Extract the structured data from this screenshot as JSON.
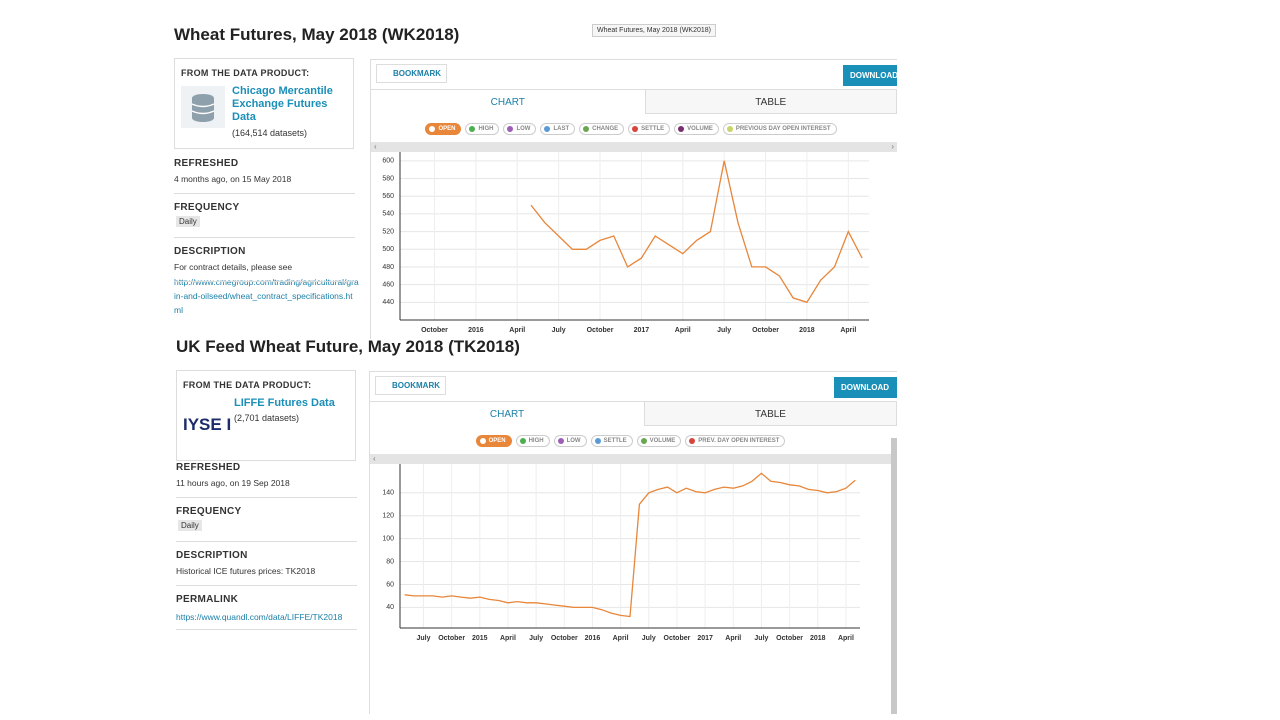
{
  "tooltip": "Wheat Futures, May 2018 (WK2018)",
  "panels": [
    {
      "title": "Wheat Futures, May 2018 (WK2018)",
      "product_heading": "FROM THE DATA PRODUCT:",
      "product_name": "Chicago Mercantile Exchange Futures Data",
      "product_count": "(164,514 datasets)",
      "sections": [
        {
          "heading": "REFRESHED",
          "text": "4 months ago, on 15 May 2018"
        },
        {
          "heading": "FREQUENCY",
          "badge": "Daily"
        },
        {
          "heading": "DESCRIPTION",
          "text": "For contract details, please see",
          "link": "http://www.cmegroup.com/trading/agricultural/grain-and-oilseed/wheat_contract_specifications.html"
        }
      ],
      "bookmark": "BOOKMARK",
      "download": "DOWNLOAD",
      "tabs": [
        "CHART",
        "TABLE"
      ],
      "toggles": [
        {
          "label": "HIGH",
          "color": "#4caf50"
        },
        {
          "label": "LOW",
          "color": "#9c5fb5"
        },
        {
          "label": "LAST",
          "color": "#5b9bd5"
        },
        {
          "label": "CHANGE",
          "color": "#6aa84f"
        },
        {
          "label": "SETTLE",
          "color": "#d9443c"
        },
        {
          "label": "VOLUME",
          "color": "#7b2d6e"
        },
        {
          "label": "PREVIOUS DAY OPEN INTEREST",
          "color": "#c9d46a"
        }
      ]
    },
    {
      "title": "UK Feed Wheat Future, May 2018 (TK2018)",
      "product_heading": "FROM THE DATA PRODUCT:",
      "logo": "IYSE I",
      "product_name": "LIFFE Futures Data",
      "product_count": "(2,701 datasets)",
      "sections": [
        {
          "heading": "REFRESHED",
          "text": "11 hours ago, on 19 Sep 2018"
        },
        {
          "heading": "FREQUENCY",
          "badge": "Daily"
        },
        {
          "heading": "DESCRIPTION",
          "text": "Historical ICE futures prices: TK2018"
        },
        {
          "heading": "PERMALINK",
          "link": "https://www.quandl.com/data/LIFFE/TK2018"
        }
      ],
      "bookmark": "BOOKMARK",
      "download": "DOWNLOAD",
      "tabs": [
        "CHART",
        "TABLE"
      ],
      "toggles": [
        {
          "label": "HIGH",
          "color": "#4caf50"
        },
        {
          "label": "LOW",
          "color": "#9c5fb5"
        },
        {
          "label": "SETTLE",
          "color": "#5b9bd5"
        },
        {
          "label": "VOLUME",
          "color": "#6aa84f"
        },
        {
          "label": "PREV. DAY OPEN INTEREST",
          "color": "#d9443c"
        }
      ]
    }
  ],
  "chart_data": [
    {
      "type": "line",
      "categories": [
        null,
        null,
        "October",
        null,
        null,
        "2016",
        null,
        null,
        "April",
        null,
        null,
        "July",
        null,
        null,
        "October",
        null,
        null,
        "2017",
        null,
        null,
        "April",
        null,
        null,
        "July",
        null,
        null,
        "October",
        null,
        null,
        "2018",
        null,
        null,
        "April",
        null
      ],
      "series": [
        {
          "name": "OPEN",
          "color": "#e8863a",
          "values": [
            null,
            null,
            null,
            null,
            null,
            null,
            null,
            null,
            null,
            550,
            530,
            515,
            500,
            500,
            510,
            515,
            480,
            490,
            515,
            505,
            495,
            510,
            520,
            600,
            530,
            480,
            480,
            470,
            445,
            440,
            465,
            480,
            520,
            490
          ]
        }
      ],
      "ylim": [
        420,
        610
      ],
      "yticks": [
        440,
        460,
        480,
        500,
        520,
        540,
        560,
        580,
        600
      ],
      "grid": true
    },
    {
      "type": "line",
      "categories": [
        null,
        null,
        "July",
        null,
        null,
        "October",
        null,
        null,
        "2015",
        null,
        null,
        "April",
        null,
        null,
        "July",
        null,
        null,
        "October",
        null,
        null,
        "2016",
        null,
        null,
        "April",
        null,
        null,
        "July",
        null,
        null,
        "October",
        null,
        null,
        "2017",
        null,
        null,
        "April",
        null,
        null,
        "July",
        null,
        null,
        "October",
        null,
        null,
        "2018",
        null,
        null,
        "April",
        null
      ],
      "series": [
        {
          "name": "OPEN",
          "color": "#e8863a",
          "values": [
            51,
            50,
            50,
            50,
            49,
            50,
            49,
            48,
            49,
            47,
            46,
            44,
            45,
            44,
            44,
            43,
            42,
            41,
            40,
            40,
            40,
            38,
            35,
            33,
            32,
            130,
            140,
            143,
            145,
            140,
            144,
            141,
            140,
            143,
            145,
            144,
            146,
            150,
            157,
            150,
            149,
            147,
            146,
            143,
            142,
            140,
            141,
            144,
            151
          ]
        }
      ],
      "ylim": [
        22,
        166
      ],
      "yticks": [
        40,
        60,
        80,
        100,
        120,
        140
      ],
      "grid": true
    }
  ]
}
